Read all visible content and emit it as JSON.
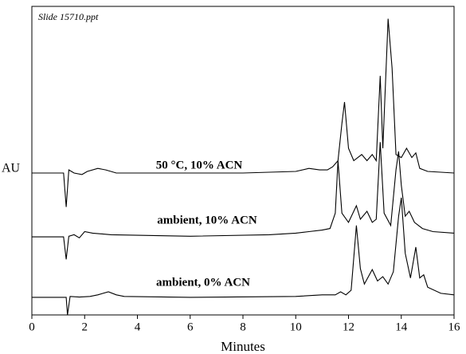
{
  "chart_data": {
    "type": "line",
    "annotation": "Slide 15710.ppt",
    "x_label": "Minutes",
    "y_label": "AU",
    "xlim": [
      0,
      16
    ],
    "xticks": [
      0,
      2,
      4,
      6,
      8,
      10,
      12,
      14,
      16
    ],
    "ylim": [
      0,
      100
    ],
    "series": [
      {
        "name": "50 °C, 10% ACN",
        "color": "#000000",
        "x": [
          0,
          1.2,
          1.3,
          1.4,
          1.6,
          1.9,
          2.1,
          2.5,
          2.8,
          3.2,
          5,
          8,
          10,
          10.5,
          10.9,
          11.2,
          11.4,
          11.6,
          11.75,
          11.85,
          12.0,
          12.2,
          12.5,
          12.7,
          12.9,
          13.05,
          13.2,
          13.3,
          13.45,
          13.5,
          13.65,
          13.8,
          14.0,
          14.2,
          14.4,
          14.55,
          14.7,
          15,
          16
        ],
        "values": [
          46,
          46,
          35,
          47,
          46,
          45.5,
          46.5,
          47.5,
          47,
          46,
          46,
          46,
          46.5,
          47.5,
          47,
          47,
          48,
          50,
          62,
          69,
          54,
          50,
          52,
          50,
          52,
          50,
          77.5,
          54,
          85,
          96,
          80,
          52,
          51,
          54,
          51,
          52.5,
          47.5,
          46.5,
          46
        ]
      },
      {
        "name": "ambient, 10% ACN",
        "color": "#000000",
        "x": [
          0,
          1.2,
          1.3,
          1.4,
          1.6,
          1.8,
          2.0,
          2.3,
          3,
          6,
          9,
          10,
          10.5,
          11,
          11.3,
          11.5,
          11.6,
          11.75,
          12.0,
          12.3,
          12.45,
          12.7,
          12.9,
          13.05,
          13.2,
          13.35,
          13.6,
          13.8,
          13.9,
          14.0,
          14.15,
          14.3,
          14.5,
          14.8,
          15.2,
          16
        ],
        "values": [
          25.3,
          25.3,
          18,
          25.5,
          26,
          25,
          27,
          26.5,
          26,
          25.5,
          26,
          26.5,
          27,
          27.5,
          28,
          33,
          50,
          33,
          30,
          35.4,
          31,
          33.6,
          30,
          31,
          56,
          33,
          29,
          47,
          53,
          42,
          32,
          33.6,
          30,
          28,
          27,
          26.5
        ]
      },
      {
        "name": "ambient, 0% ACN",
        "color": "#000000",
        "x": [
          0,
          1.3,
          1.35,
          1.45,
          1.8,
          2.2,
          2.5,
          2.9,
          3.2,
          3.5,
          6,
          10,
          11,
          11.5,
          11.7,
          11.9,
          12.1,
          12.3,
          12.45,
          12.6,
          12.9,
          13.1,
          13.3,
          13.5,
          13.7,
          13.9,
          14.0,
          14.15,
          14.35,
          14.55,
          14.7,
          14.85,
          15.0,
          15.5,
          16
        ],
        "values": [
          5.7,
          5.7,
          0,
          6,
          5.8,
          6,
          6.5,
          7.5,
          6.5,
          6,
          5.7,
          6,
          6.5,
          6.5,
          7.5,
          6.5,
          8,
          29,
          15,
          10,
          14.7,
          11,
          12.4,
          10,
          14,
          32,
          38,
          20,
          12,
          22,
          12,
          13,
          9,
          7,
          6.5
        ]
      }
    ]
  }
}
